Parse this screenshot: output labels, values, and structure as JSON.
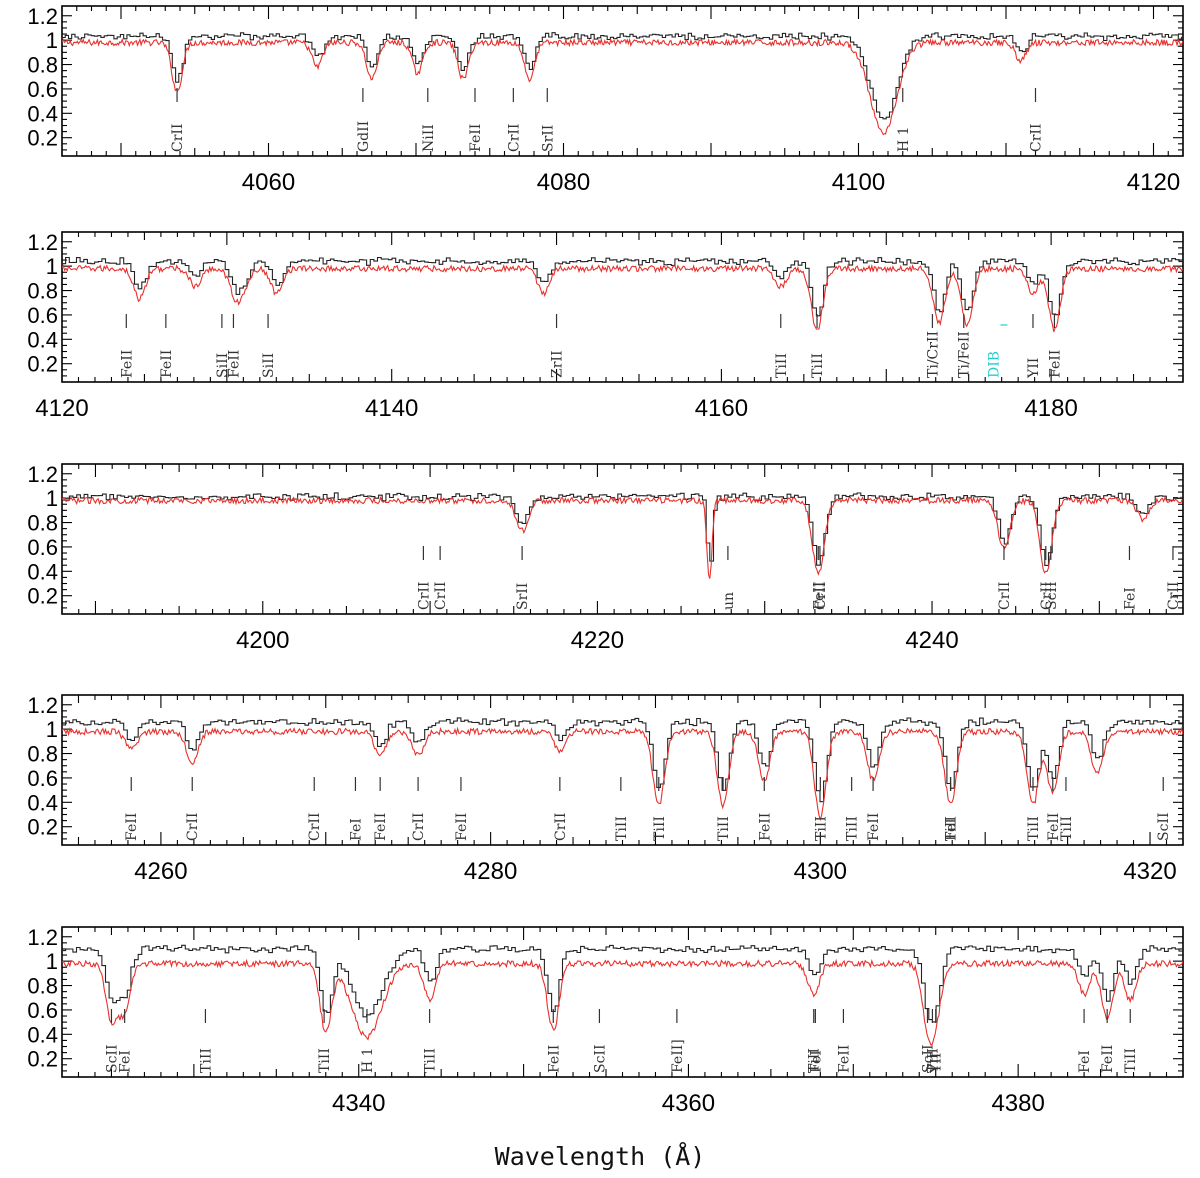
{
  "chart_data": {
    "type": "line",
    "xlabel": "Wavelength (Å)",
    "series": [
      {
        "name": "",
        "color": "#222222"
      },
      {
        "name": "",
        "color": "#e8302c"
      }
    ],
    "dib_color": "#22cccc",
    "yticks": [
      "1.2",
      "1",
      "0.8",
      "0.6",
      "0.4",
      "0.2"
    ],
    "ylim": [
      0.05,
      1.28
    ],
    "panels": [
      {
        "xlim": [
          4046,
          4122
        ],
        "xticks": [
          4060,
          4080,
          4100,
          4120
        ],
        "black_offset": 0.03,
        "lines": [
          {
            "w": 4053.8,
            "d": 0.4,
            "label": "CrII"
          },
          {
            "w": 4073.2,
            "d": 0.3,
            "label": "GdII"
          },
          {
            "w": 4067.0,
            "d": 0.3,
            "label": "NiII"
          },
          {
            "w": 4063.3,
            "d": 0.2,
            "label": "FeII"
          },
          {
            "w": 4070.1,
            "d": 0.25,
            "label": "CrII"
          },
          {
            "w": 4077.7,
            "d": 0.3,
            "label": "SrII"
          },
          {
            "w": 4101.7,
            "d": 0.75,
            "wid": 0.9,
            "label": "H 1"
          },
          {
            "w": 4111.0,
            "d": 0.15,
            "label": "CrII"
          }
        ],
        "marks": [
          {
            "w": 4053.8,
            "label": "CrII"
          },
          {
            "w": 4066.4,
            "label": "GdII"
          },
          {
            "w": 4070.8,
            "label": "NiII"
          },
          {
            "w": 4074.0,
            "label": "FeII"
          },
          {
            "w": 4076.6,
            "label": "CrII"
          },
          {
            "w": 4078.9,
            "label": "SrII"
          },
          {
            "w": 4103.0,
            "label": "H 1"
          },
          {
            "w": 4112.0,
            "label": "CrII"
          }
        ]
      },
      {
        "xlim": [
          4120,
          4188
        ],
        "xticks": [
          4120,
          4140,
          4160,
          4180
        ],
        "black_offset": 0.04,
        "lines": [
          {
            "w": 4124.7,
            "d": 0.25
          },
          {
            "w": 4128.1,
            "d": 0.15
          },
          {
            "w": 4130.5,
            "d": 0.2
          },
          {
            "w": 4131.0,
            "d": 0.15
          },
          {
            "w": 4133.0,
            "d": 0.2
          },
          {
            "w": 4149.2,
            "d": 0.2
          },
          {
            "w": 4163.6,
            "d": 0.15
          },
          {
            "w": 4165.8,
            "d": 0.5
          },
          {
            "w": 4173.2,
            "d": 0.45
          },
          {
            "w": 4174.9,
            "d": 0.45
          },
          {
            "w": 4178.9,
            "d": 0.2
          },
          {
            "w": 4180.2,
            "d": 0.5
          }
        ],
        "marks": [
          {
            "w": 4123.9,
            "label": "FeII"
          },
          {
            "w": 4126.3,
            "label": "FeII"
          },
          {
            "w": 4129.7,
            "label": "SiII"
          },
          {
            "w": 4130.4,
            "label": "FeII"
          },
          {
            "w": 4132.5,
            "label": "SiII"
          },
          {
            "w": 4150.0,
            "label": "ZrII"
          },
          {
            "w": 4163.6,
            "label": "TiII"
          },
          {
            "w": 4165.8,
            "label": "TiII"
          },
          {
            "w": 4172.8,
            "label": "Ti/CrII"
          },
          {
            "w": 4174.7,
            "label": "Ti/FeII"
          },
          {
            "w": 4176.5,
            "label": "DIB",
            "dib": true
          },
          {
            "w": 4178.9,
            "label": "YII"
          },
          {
            "w": 4180.2,
            "label": "FeII"
          }
        ]
      },
      {
        "xlim": [
          4188,
          4255
        ],
        "xticks": [
          4200,
          4220,
          4240
        ],
        "black_offset": 0.01,
        "lines": [
          {
            "w": 4215.5,
            "d": 0.25
          },
          {
            "w": 4226.7,
            "d": 0.65,
            "wid": 0.15
          },
          {
            "w": 4233.2,
            "d": 0.6
          },
          {
            "w": 4244.3,
            "d": 0.4
          },
          {
            "w": 4246.8,
            "d": 0.6
          },
          {
            "w": 4252.6,
            "d": 0.15
          }
        ],
        "marks": [
          {
            "w": 4209.6,
            "label": "CrII"
          },
          {
            "w": 4210.6,
            "label": "CrII"
          },
          {
            "w": 4215.5,
            "label": "SrII"
          },
          {
            "w": 4227.8,
            "label": "un"
          },
          {
            "w": 4233.2,
            "label": "FeII"
          },
          {
            "w": 4233.3,
            "label": "CrII"
          },
          {
            "w": 4244.3,
            "label": "CrII"
          },
          {
            "w": 4246.8,
            "label": "CrII"
          },
          {
            "w": 4247.1,
            "label": "ScII"
          },
          {
            "w": 4251.8,
            "label": "FeI"
          },
          {
            "w": 4254.4,
            "label": "CrII"
          }
        ]
      },
      {
        "xlim": [
          4254,
          4322
        ],
        "xticks": [
          4260,
          4280,
          4300,
          4320
        ],
        "black_offset": 0.06,
        "lines": [
          {
            "w": 4258.2,
            "d": 0.15
          },
          {
            "w": 4261.9,
            "d": 0.25
          },
          {
            "w": 4273.3,
            "d": 0.2
          },
          {
            "w": 4275.6,
            "d": 0.2
          },
          {
            "w": 4284.2,
            "d": 0.15
          },
          {
            "w": 4290.2,
            "d": 0.6
          },
          {
            "w": 4294.1,
            "d": 0.6
          },
          {
            "w": 4296.6,
            "d": 0.4
          },
          {
            "w": 4300.0,
            "d": 0.7
          },
          {
            "w": 4303.2,
            "d": 0.4
          },
          {
            "w": 4307.9,
            "d": 0.6
          },
          {
            "w": 4312.9,
            "d": 0.6
          },
          {
            "w": 4314.1,
            "d": 0.5
          },
          {
            "w": 4316.8,
            "d": 0.35
          }
        ],
        "marks": [
          {
            "w": 4258.2,
            "label": "FeII"
          },
          {
            "w": 4261.9,
            "label": "CrII"
          },
          {
            "w": 4269.3,
            "label": "CrII"
          },
          {
            "w": 4271.8,
            "label": "FeI"
          },
          {
            "w": 4273.3,
            "label": "FeII"
          },
          {
            "w": 4275.6,
            "label": "CrII"
          },
          {
            "w": 4278.2,
            "label": "FeII"
          },
          {
            "w": 4284.2,
            "label": "CrII"
          },
          {
            "w": 4287.9,
            "label": "TiII"
          },
          {
            "w": 4290.2,
            "label": "TiII"
          },
          {
            "w": 4294.1,
            "label": "TiII"
          },
          {
            "w": 4296.6,
            "label": "FeII"
          },
          {
            "w": 4300.0,
            "label": "TiII"
          },
          {
            "w": 4301.9,
            "label": "TiII"
          },
          {
            "w": 4303.2,
            "label": "FeII"
          },
          {
            "w": 4307.9,
            "label": "TiII"
          },
          {
            "w": 4307.9,
            "label": "FeI"
          },
          {
            "w": 4312.9,
            "label": "TiII"
          },
          {
            "w": 4314.1,
            "label": "FeII"
          },
          {
            "w": 4314.9,
            "label": "TiII"
          },
          {
            "w": 4320.8,
            "label": "ScII"
          }
        ]
      },
      {
        "xlim": [
          4322,
          4390
        ],
        "xticks": [
          4340,
          4360,
          4380
        ],
        "black_offset": 0.1,
        "lines": [
          {
            "w": 4325.0,
            "d": 0.45
          },
          {
            "w": 4325.8,
            "d": 0.4
          },
          {
            "w": 4338.0,
            "d": 0.55
          },
          {
            "w": 4340.5,
            "d": 0.6,
            "wid": 0.9
          },
          {
            "w": 4344.3,
            "d": 0.3
          },
          {
            "w": 4351.8,
            "d": 0.55
          },
          {
            "w": 4367.6,
            "d": 0.25
          },
          {
            "w": 4374.5,
            "d": 0.45
          },
          {
            "w": 4375.0,
            "d": 0.4
          },
          {
            "w": 4384.0,
            "d": 0.25
          },
          {
            "w": 4385.4,
            "d": 0.45
          },
          {
            "w": 4386.8,
            "d": 0.3
          }
        ],
        "marks": [
          {
            "w": 4325.0,
            "label": "ScII"
          },
          {
            "w": 4325.8,
            "label": "FeI"
          },
          {
            "w": 4330.7,
            "label": "TiII"
          },
          {
            "w": 4337.9,
            "label": "TiII"
          },
          {
            "w": 4340.5,
            "label": "H 1"
          },
          {
            "w": 4344.3,
            "label": "TiII"
          },
          {
            "w": 4351.8,
            "label": "FeII"
          },
          {
            "w": 4354.6,
            "label": "ScII"
          },
          {
            "w": 4359.3,
            "label": "FeII]"
          },
          {
            "w": 4367.6,
            "label": "TiII"
          },
          {
            "w": 4367.7,
            "label": "FeI"
          },
          {
            "w": 4369.4,
            "label": "FeII"
          },
          {
            "w": 4374.5,
            "label": "ScII"
          },
          {
            "w": 4374.8,
            "label": "TiII"
          },
          {
            "w": 4375.0,
            "label": "YII"
          },
          {
            "w": 4384.0,
            "label": "FeI"
          },
          {
            "w": 4385.4,
            "label": "FeII"
          },
          {
            "w": 4386.8,
            "label": "TiII"
          }
        ]
      }
    ]
  }
}
